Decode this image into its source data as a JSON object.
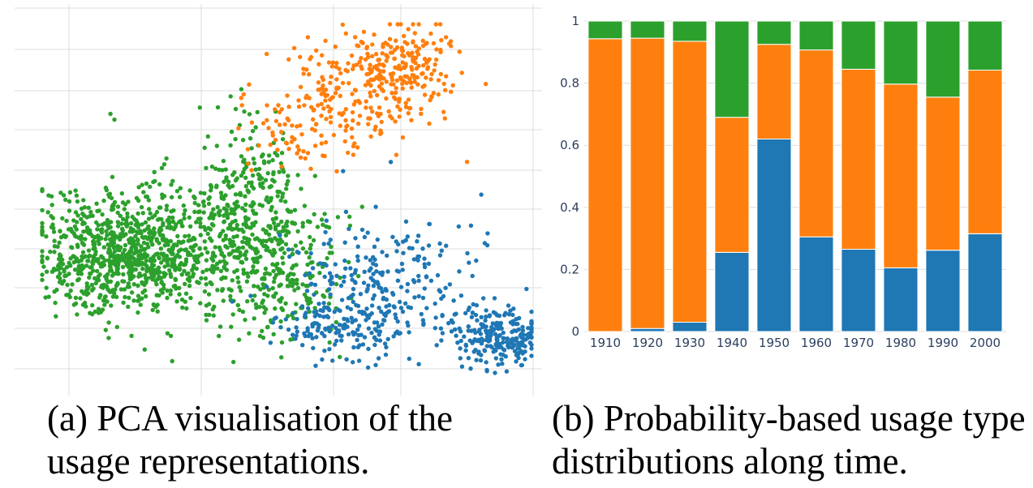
{
  "captions": {
    "a": "(a) PCA visualisation of the usage representations.",
    "b": "(b) Probability-based usage type distributions along time."
  },
  "chart_data": [
    {
      "type": "scatter",
      "title": "",
      "xlabel": "",
      "ylabel": "",
      "ticklabels_shown": false,
      "grid": true,
      "legend": "none",
      "clusters": [
        {
          "color": "#2ca02c",
          "count": 1500,
          "region": "left and center-left, dense blob around the left"
        },
        {
          "color": "#ff7f0e",
          "count": 420,
          "region": "top center-right"
        },
        {
          "color": "#1f77b4",
          "count": 620,
          "region": "bottom center to right, dense blob at right"
        }
      ]
    },
    {
      "type": "bar",
      "stacked": true,
      "title": "",
      "xlabel": "",
      "ylabel": "",
      "ylim": [
        0,
        1
      ],
      "yticks": [
        "0",
        "0.2",
        "0.4",
        "0.6",
        "0.8",
        "1"
      ],
      "categories": [
        "1910",
        "1920",
        "1930",
        "1940",
        "1950",
        "1960",
        "1970",
        "1980",
        "1990",
        "2000"
      ],
      "series": [
        {
          "color": "#1f77b4",
          "values": [
            0.0,
            0.01,
            0.03,
            0.255,
            0.62,
            0.305,
            0.265,
            0.205,
            0.262,
            0.315
          ]
        },
        {
          "color": "#ff7f0e",
          "values": [
            0.943,
            0.935,
            0.905,
            0.435,
            0.305,
            0.602,
            0.58,
            0.592,
            0.493,
            0.527
          ]
        },
        {
          "color": "#2ca02c",
          "values": [
            0.057,
            0.055,
            0.065,
            0.31,
            0.075,
            0.093,
            0.155,
            0.203,
            0.245,
            0.158
          ]
        }
      ],
      "grid": true,
      "legend": "none"
    }
  ]
}
